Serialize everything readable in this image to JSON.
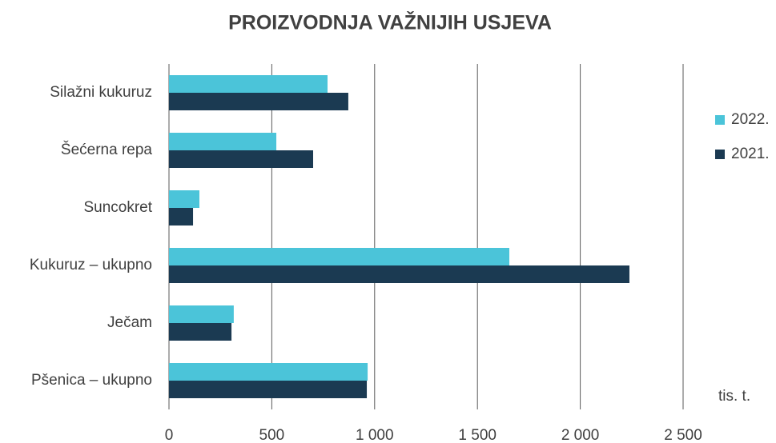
{
  "chart_data": {
    "type": "barh",
    "title": "PROIZVODNJA VAŽNIJIH USJEVA",
    "categories": [
      "Silažni kukuruz",
      "Šećerna repa",
      "Suncokret",
      "Kukuruz – ukupno",
      "Ječam",
      "Pšenica – ukupno"
    ],
    "series": [
      {
        "name": "2022.",
        "color": "#4bc4d9",
        "values": [
          771,
          522,
          148,
          1655,
          315,
          966
        ]
      },
      {
        "name": "2021.",
        "color": "#1b3a52",
        "values": [
          872,
          701,
          117,
          2239,
          304,
          962
        ]
      }
    ],
    "xlim": [
      0,
      2500
    ],
    "xticks": [
      0,
      500,
      {
        "value": 1000,
        "label": "1 000"
      },
      {
        "value": 1500,
        "label": "1 500"
      },
      {
        "value": 2000,
        "label": "2 000"
      },
      {
        "value": 2500,
        "label": "2 500"
      }
    ],
    "xlabel": "tis. t.",
    "grid": true,
    "legend": "right"
  }
}
